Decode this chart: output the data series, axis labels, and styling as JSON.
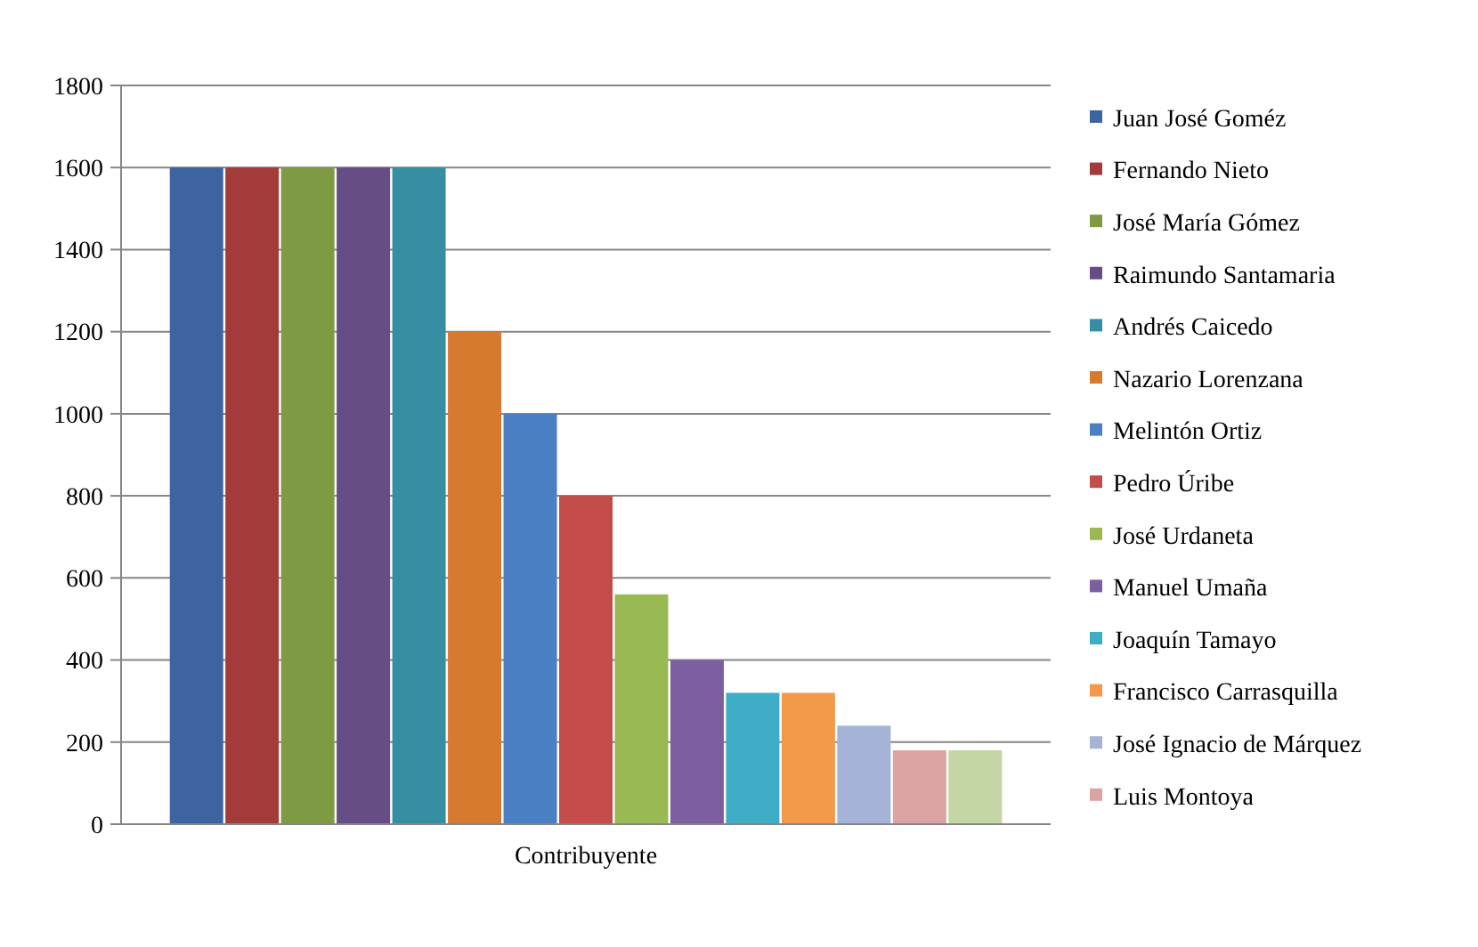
{
  "chart_data": {
    "type": "bar",
    "categories": [
      "Contribuyente"
    ],
    "series": [
      {
        "name": "Juan José Goméz",
        "color": "#3d64a0",
        "values": [
          1600
        ]
      },
      {
        "name": "Fernando Nieto",
        "color": "#a23b3a",
        "values": [
          1600
        ]
      },
      {
        "name": "José María Gómez",
        "color": "#7e9a42",
        "values": [
          1600
        ]
      },
      {
        "name": "Raimundo Santamaria",
        "color": "#664d86",
        "values": [
          1600
        ]
      },
      {
        "name": "Andrés Caicedo",
        "color": "#358ea2",
        "values": [
          1600
        ]
      },
      {
        "name": "Nazario Lorenzana",
        "color": "#d67a2f",
        "values": [
          1200
        ]
      },
      {
        "name": "Melintón Ortiz",
        "color": "#4a7fc4",
        "values": [
          1000
        ]
      },
      {
        "name": "Pedro Úribe",
        "color": "#c44c4a",
        "values": [
          800
        ]
      },
      {
        "name": "José Urdaneta",
        "color": "#99ba52",
        "values": [
          560
        ]
      },
      {
        "name": "Manuel Umaña",
        "color": "#7d5ea0",
        "values": [
          400
        ]
      },
      {
        "name": "Joaquín Tamayo",
        "color": "#3eadc5",
        "values": [
          320
        ]
      },
      {
        "name": "Francisco Carrasquilla",
        "color": "#f39a4a",
        "values": [
          320
        ]
      },
      {
        "name": "José Ignacio de Márquez",
        "color": "#a5b4d6",
        "values": [
          240
        ]
      },
      {
        "name": "Luis Montoya",
        "color": "#d9a4a3",
        "values": [
          180
        ]
      },
      {
        "color": "#c4d6a3",
        "values": [
          180
        ]
      }
    ],
    "ylim": [
      0,
      1800
    ],
    "yticks": [
      0,
      200,
      400,
      600,
      800,
      1000,
      1200,
      1400,
      1600,
      1800
    ],
    "grid": "y",
    "legend": "right"
  }
}
